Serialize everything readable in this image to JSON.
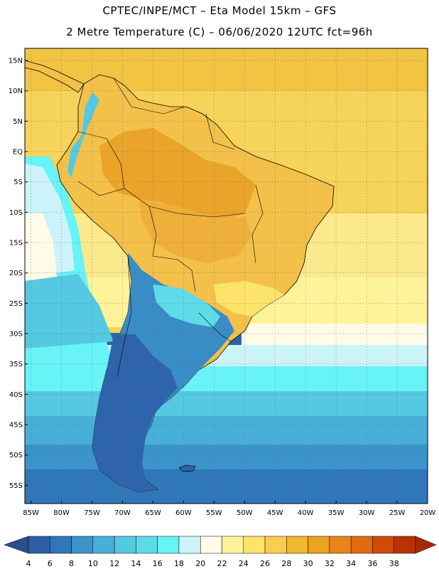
{
  "header": {
    "line1": "CPTEC/INPE/MCT –  Eta Model 15km – GFS",
    "line2": "2 Metre Temperature (C) – 06/06/2020 12UTC fct=96h"
  },
  "map": {
    "lat_labels": [
      "15N",
      "10N",
      "5N",
      "EQ",
      "5S",
      "10S",
      "15S",
      "20S",
      "25S",
      "30S",
      "35S",
      "40S",
      "45S",
      "50S",
      "55S"
    ],
    "lon_labels": [
      "85W",
      "80W",
      "75W",
      "70W",
      "65W",
      "60W",
      "55W",
      "50W",
      "45W",
      "40W",
      "35W",
      "30W",
      "25W",
      "20W"
    ],
    "lat_values": [
      15,
      10,
      5,
      0,
      -5,
      -10,
      -15,
      -20,
      -25,
      -30,
      -35,
      -40,
      -45,
      -50,
      -55
    ],
    "lon_values": [
      -85,
      -80,
      -75,
      -70,
      -65,
      -60,
      -55,
      -50,
      -45,
      -40,
      -35,
      -30,
      -25,
      -20
    ],
    "lat_range": [
      -58,
      17
    ],
    "lon_range": [
      -86,
      -20
    ],
    "grid": "dotted"
  },
  "colorbar": {
    "labels": [
      "4",
      "6",
      "8",
      "10",
      "12",
      "14",
      "16",
      "18",
      "20",
      "22",
      "24",
      "26",
      "28",
      "30",
      "32",
      "34",
      "36",
      "38"
    ],
    "values": [
      4,
      6,
      8,
      10,
      12,
      14,
      16,
      18,
      20,
      22,
      24,
      26,
      28,
      30,
      32,
      34,
      36,
      38
    ],
    "colors": [
      "#2e5ea3",
      "#2f77b8",
      "#3a94c9",
      "#48b0d8",
      "#55c8e2",
      "#5edbe8",
      "#68f3f6",
      "#cdf3fa",
      "#fffbe6",
      "#fff39a",
      "#fde36a",
      "#f8cf4d",
      "#f0b833",
      "#eba21e",
      "#e8861a",
      "#e06a12",
      "#d04a0c",
      "#b83206"
    ],
    "left_arrow_color": "#2a4f8e",
    "right_arrow_color": "#a52a04"
  },
  "colors": {
    "ocean_south_deep": "#2e64ab",
    "ocean_south": "#3a8cc6",
    "ocean_mid": "#55c8e2",
    "ocean_light": "#8fe7f0",
    "ocean_pale": "#d8f6fb",
    "ocean_warm": "#fde87a",
    "ocean_tropic": "#f6d35a",
    "land_hot": "#eaa42a",
    "land_warm": "#f3c04a",
    "land_cold": "#2e64ab",
    "border": "#000000"
  }
}
